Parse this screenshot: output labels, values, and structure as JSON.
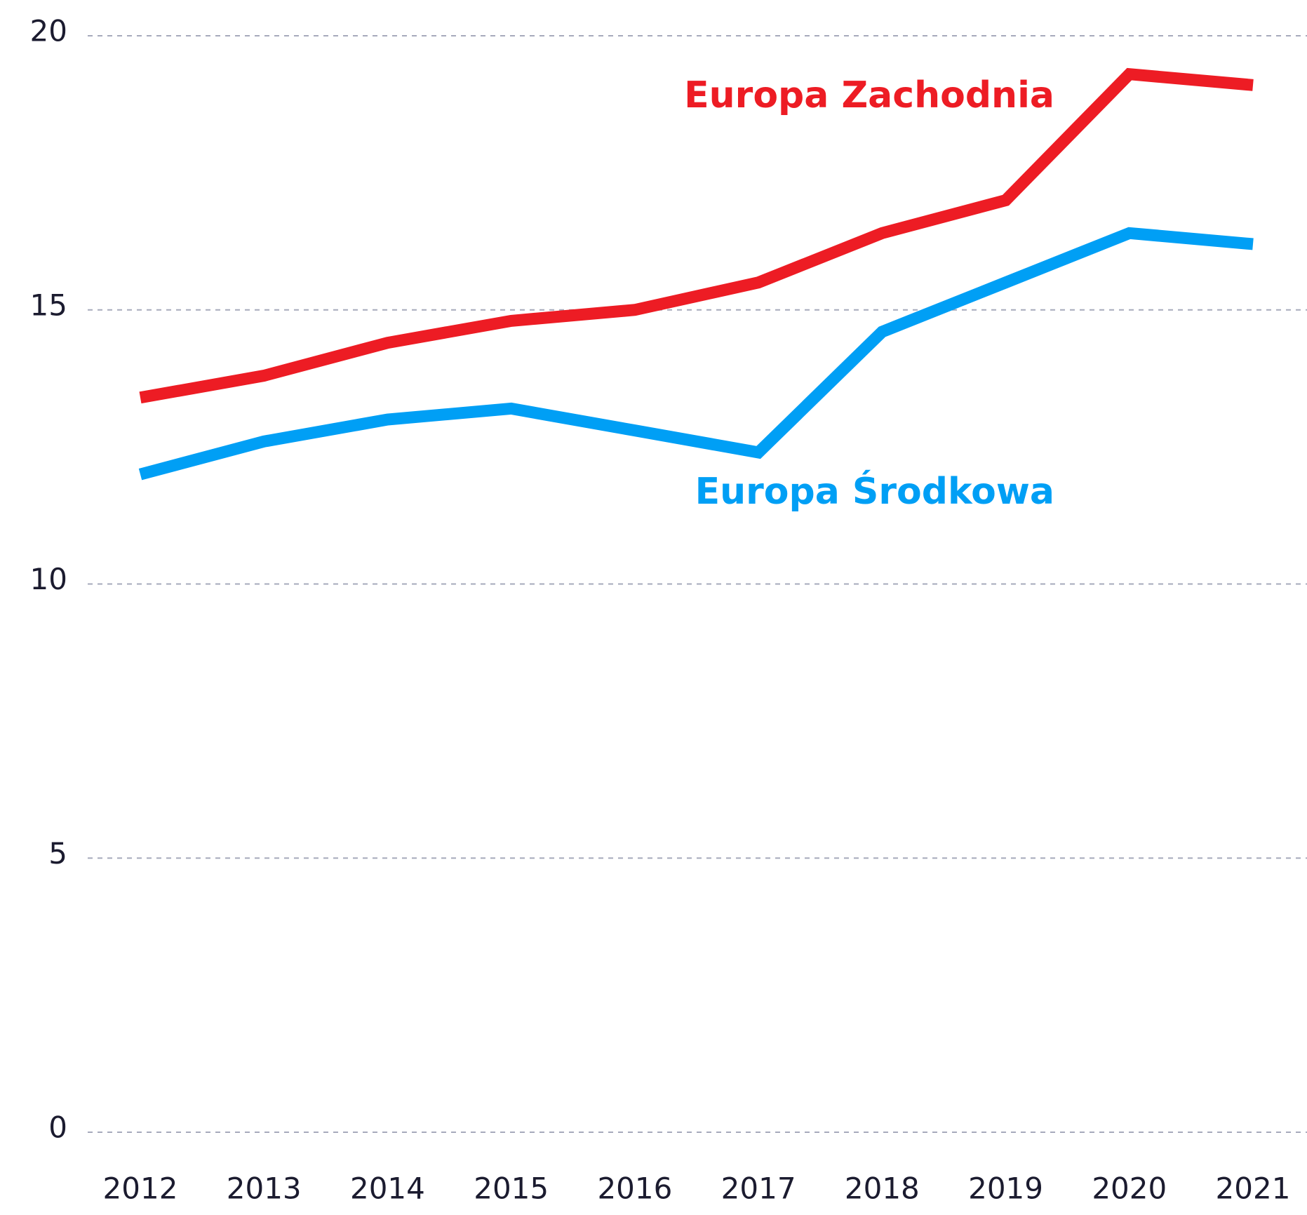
{
  "chart_data": {
    "type": "line",
    "x": [
      2012,
      2013,
      2014,
      2015,
      2016,
      2017,
      2018,
      2019,
      2020,
      2021
    ],
    "series": [
      {
        "name": "Europa Zachodnia",
        "color": "#ed1c24",
        "values": [
          13.4,
          13.8,
          14.4,
          14.8,
          15.0,
          15.5,
          16.4,
          17.0,
          19.3,
          19.1
        ]
      },
      {
        "name": "Europa Środkowa",
        "color": "#009ff5",
        "values": [
          12.0,
          12.6,
          13.0,
          13.2,
          12.8,
          12.4,
          14.6,
          15.5,
          16.4,
          16.2
        ]
      }
    ],
    "ylim": [
      0,
      20
    ],
    "yticks": [
      0,
      5,
      10,
      15,
      20
    ],
    "xlim": [
      2012,
      2021
    ],
    "xticks": [
      2012,
      2013,
      2014,
      2015,
      2016,
      2017,
      2018,
      2019,
      2020,
      2021
    ],
    "grid": true
  }
}
